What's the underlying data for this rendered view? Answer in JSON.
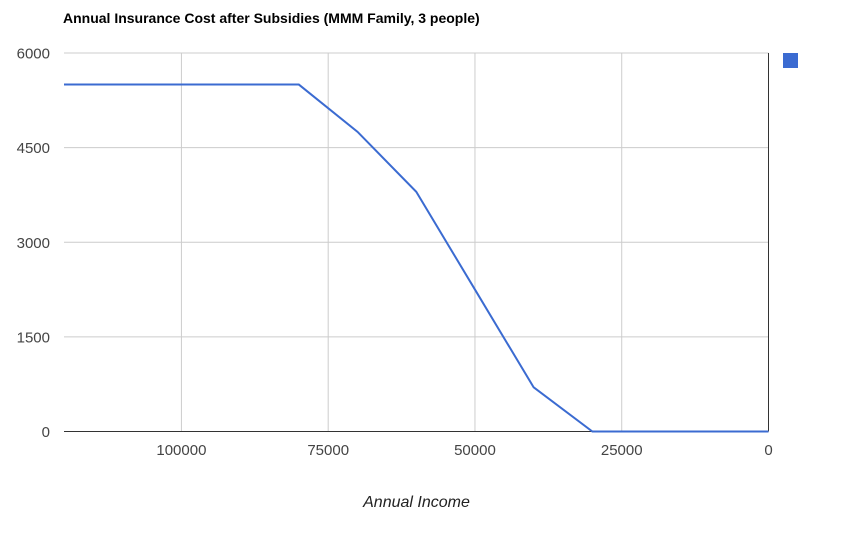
{
  "chart_data": {
    "type": "line",
    "title": "Annual Insurance Cost after Subsidies (MMM Family, 3 people)",
    "xlabel": "Annual Income",
    "ylabel": "",
    "x_reversed": true,
    "xlim": [
      120000,
      0
    ],
    "ylim": [
      0,
      6000
    ],
    "x_ticks": [
      100000,
      75000,
      50000,
      25000,
      0
    ],
    "y_ticks": [
      0,
      1500,
      3000,
      4500,
      6000
    ],
    "grid": true,
    "legend_position": "right",
    "series": [
      {
        "name": "",
        "color": "#3b6bd1",
        "points": [
          {
            "x": 120000,
            "y": 5500
          },
          {
            "x": 80000,
            "y": 5500
          },
          {
            "x": 70000,
            "y": 4750
          },
          {
            "x": 60000,
            "y": 3800
          },
          {
            "x": 50000,
            "y": 2250
          },
          {
            "x": 40000,
            "y": 700
          },
          {
            "x": 30000,
            "y": 0
          },
          {
            "x": 0,
            "y": 0
          }
        ]
      }
    ]
  },
  "legend": {
    "swatch_color": "#3b6bd1",
    "label": ""
  },
  "colors": {
    "gridline": "#cccccc",
    "baseline": "#333333",
    "tick_label": "#444444",
    "title": "#000000",
    "axis_title": "#222222",
    "background": "#ffffff"
  }
}
